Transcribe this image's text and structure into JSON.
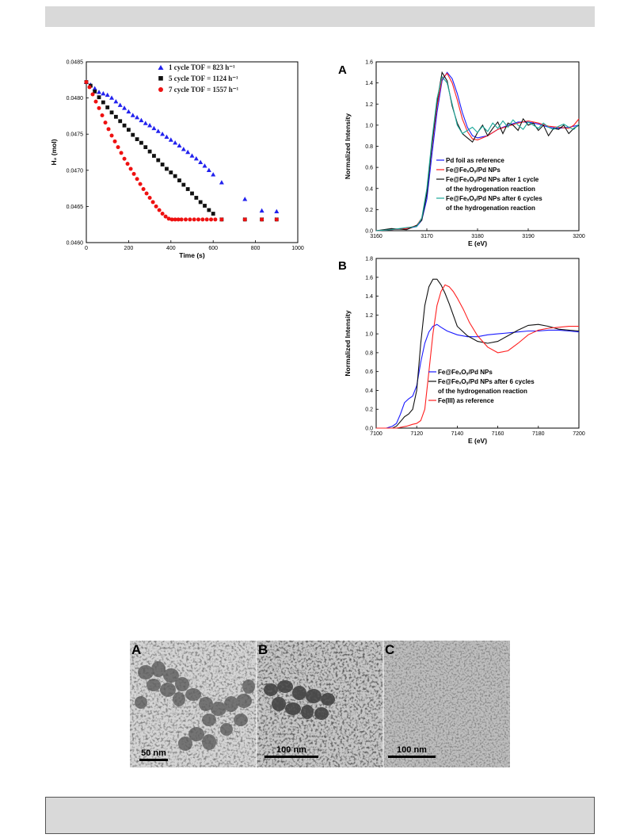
{
  "header": {
    "text": ""
  },
  "footer": {
    "text": ""
  },
  "chart_data": [
    {
      "type": "scatter",
      "xlabel": "Time (s)",
      "ylabel": "H₂ (mol)",
      "xlim": [
        0,
        1000
      ],
      "ylim": [
        0.046,
        0.0485
      ],
      "x_ticks": [
        "0",
        "200",
        "400",
        "600",
        "800",
        "1000"
      ],
      "y_ticks": [
        "0.0460",
        "0.0465",
        "0.0470",
        "0.0475",
        "0.0480",
        "0.0485"
      ],
      "legend_position": "top-right",
      "series": [
        {
          "name": "1 cycle  TOF = 823 h⁻¹",
          "color": "#2222ee",
          "marker": "triangle",
          "x": [
            0,
            20,
            40,
            60,
            80,
            100,
            120,
            140,
            160,
            180,
            200,
            220,
            240,
            260,
            280,
            300,
            320,
            340,
            360,
            380,
            400,
            420,
            440,
            460,
            480,
            500,
            520,
            540,
            560,
            580,
            600,
            640,
            750,
            830,
            900
          ],
          "y": [
            0.04822,
            0.04818,
            0.04813,
            0.04808,
            0.04806,
            0.04804,
            0.048,
            0.04795,
            0.0479,
            0.04786,
            0.04781,
            0.04776,
            0.04773,
            0.04769,
            0.04765,
            0.04762,
            0.04758,
            0.04754,
            0.0475,
            0.04746,
            0.04742,
            0.04738,
            0.04734,
            0.04729,
            0.04725,
            0.0472,
            0.04716,
            0.04711,
            0.04706,
            0.047,
            0.04694,
            0.04683,
            0.0466,
            0.04644,
            0.04643
          ]
        },
        {
          "name": "5 cycle  TOF = 1124 h⁻¹",
          "color": "#111111",
          "marker": "square",
          "x": [
            0,
            20,
            40,
            60,
            80,
            100,
            120,
            140,
            160,
            180,
            200,
            220,
            240,
            260,
            280,
            300,
            320,
            340,
            360,
            380,
            400,
            420,
            440,
            460,
            480,
            500,
            520,
            540,
            560,
            580,
            600,
            640,
            750,
            830,
            900
          ],
          "y": [
            0.04822,
            0.04817,
            0.04809,
            0.04801,
            0.04794,
            0.04787,
            0.0478,
            0.04774,
            0.04768,
            0.04762,
            0.04756,
            0.04749,
            0.04743,
            0.04738,
            0.04732,
            0.04726,
            0.0472,
            0.04714,
            0.04708,
            0.04702,
            0.04697,
            0.04692,
            0.04686,
            0.0468,
            0.04674,
            0.04668,
            0.04662,
            0.04656,
            0.04651,
            0.04645,
            0.0464,
            0.04632,
            0.04632,
            0.04632,
            0.04632
          ]
        },
        {
          "name": "7 cycle  TOF = 1557 h⁻¹",
          "color": "#ee1111",
          "marker": "circle",
          "x": [
            0,
            15,
            30,
            45,
            60,
            75,
            90,
            105,
            120,
            135,
            150,
            165,
            180,
            195,
            210,
            225,
            240,
            255,
            270,
            285,
            300,
            315,
            330,
            345,
            360,
            375,
            390,
            405,
            420,
            435,
            450,
            470,
            490,
            510,
            530,
            550,
            570,
            590,
            610,
            640,
            750,
            830,
            900
          ],
          "y": [
            0.04822,
            0.04815,
            0.04805,
            0.04795,
            0.04786,
            0.04776,
            0.04766,
            0.04757,
            0.04748,
            0.0474,
            0.04732,
            0.04724,
            0.04716,
            0.04709,
            0.04702,
            0.04695,
            0.04688,
            0.04681,
            0.04674,
            0.04668,
            0.04662,
            0.04656,
            0.0465,
            0.04645,
            0.0464,
            0.04636,
            0.04633,
            0.04632,
            0.04632,
            0.04632,
            0.04632,
            0.04632,
            0.04632,
            0.04632,
            0.04632,
            0.04632,
            0.04632,
            0.04632,
            0.04632,
            0.04632,
            0.04632,
            0.04632,
            0.04632
          ]
        }
      ]
    },
    {
      "type": "line",
      "panel_label": "A",
      "xlabel": "E (eV)",
      "ylabel": "Normalized Intensity",
      "xlim": [
        3160,
        3200
      ],
      "ylim": [
        0.0,
        1.6
      ],
      "x_ticks": [
        "3160",
        "3170",
        "3180",
        "3190",
        "3200"
      ],
      "y_ticks": [
        "0.0",
        "0.2",
        "0.4",
        "0.6",
        "0.8",
        "1.0",
        "1.2",
        "1.4",
        "1.6"
      ],
      "legend_position": "bottom-right",
      "series": [
        {
          "name": "Pd foil as reference",
          "color": "#1a1aff"
        },
        {
          "name": "Fe@FeₓOᵧ/Pd NPs",
          "color": "#ff2020"
        },
        {
          "name": "Fe@FeₓOᵧ/Pd NPs after 1 cycle",
          "name_line2": "of the hydrogenation reaction",
          "color": "#111111"
        },
        {
          "name": "Fe@FeₓOᵧ/Pd NPs after 6 cycles",
          "name_line2": "of the hydrogenation reaction",
          "color": "#1aa89a"
        }
      ],
      "curves": [
        {
          "color": "#1a1aff",
          "x": [
            3160,
            3163,
            3166,
            3168,
            3169,
            3170,
            3171,
            3172,
            3173,
            3174,
            3175,
            3176,
            3177,
            3178,
            3179,
            3180,
            3182,
            3184,
            3186,
            3188,
            3190,
            3192,
            3194,
            3196,
            3198,
            3200
          ],
          "y": [
            0.0,
            0.01,
            0.02,
            0.04,
            0.1,
            0.3,
            0.72,
            1.12,
            1.42,
            1.5,
            1.44,
            1.3,
            1.12,
            0.98,
            0.9,
            0.88,
            0.9,
            0.96,
            1.0,
            1.03,
            1.03,
            1.01,
            0.98,
            0.97,
            0.98,
            1.0
          ]
        },
        {
          "color": "#ff2020",
          "x": [
            3160,
            3163,
            3166,
            3168,
            3169,
            3170,
            3171,
            3172,
            3173,
            3174,
            3175,
            3176,
            3177,
            3178,
            3179,
            3180,
            3182,
            3184,
            3186,
            3188,
            3190,
            3192,
            3194,
            3196,
            3198,
            3199,
            3200
          ],
          "y": [
            0.0,
            0.01,
            0.02,
            0.05,
            0.12,
            0.36,
            0.8,
            1.18,
            1.44,
            1.49,
            1.4,
            1.24,
            1.06,
            0.94,
            0.87,
            0.86,
            0.9,
            0.96,
            0.99,
            1.02,
            1.04,
            1.02,
            0.99,
            0.98,
            0.97,
            1.0,
            1.06
          ]
        },
        {
          "color": "#111111",
          "x": [
            3160,
            3163,
            3166,
            3168,
            3169,
            3170,
            3171,
            3172,
            3173,
            3174,
            3175,
            3176,
            3177,
            3178,
            3179,
            3180,
            3181,
            3182,
            3183,
            3184,
            3185,
            3186,
            3187,
            3188,
            3189,
            3190,
            3191,
            3192,
            3193,
            3194,
            3195,
            3196,
            3197,
            3198,
            3199,
            3200
          ],
          "y": [
            0.0,
            0.02,
            0.01,
            0.05,
            0.1,
            0.35,
            0.82,
            1.22,
            1.5,
            1.42,
            1.18,
            1.02,
            0.92,
            0.88,
            0.84,
            0.93,
            1.0,
            0.9,
            0.97,
            1.03,
            0.92,
            1.02,
            1.0,
            0.95,
            1.06,
            1.0,
            1.02,
            0.95,
            1.0,
            0.9,
            0.97,
            0.96,
            1.0,
            0.92,
            0.97,
            1.0
          ]
        },
        {
          "color": "#1aa89a",
          "x": [
            3160,
            3163,
            3166,
            3168,
            3169,
            3170,
            3171,
            3172,
            3173,
            3174,
            3175,
            3176,
            3177,
            3178,
            3179,
            3180,
            3181,
            3182,
            3183,
            3184,
            3185,
            3186,
            3187,
            3188,
            3189,
            3190,
            3191,
            3192,
            3193,
            3194,
            3195,
            3196,
            3197,
            3198,
            3199,
            3200
          ],
          "y": [
            0.0,
            0.01,
            0.03,
            0.04,
            0.12,
            0.4,
            0.86,
            1.25,
            1.46,
            1.4,
            1.2,
            1.0,
            0.92,
            0.95,
            0.98,
            0.93,
            0.99,
            0.94,
            1.02,
            0.97,
            1.04,
            0.98,
            1.05,
            1.0,
            0.96,
            1.03,
            1.0,
            0.97,
            1.02,
            0.98,
            0.96,
            0.99,
            1.01,
            0.98,
            0.96,
            1.01
          ]
        }
      ]
    },
    {
      "type": "line",
      "panel_label": "B",
      "xlabel": "E (eV)",
      "ylabel": "Normalized Intensity",
      "xlim": [
        7100,
        7200
      ],
      "ylim": [
        0.0,
        1.8
      ],
      "x_ticks": [
        "7100",
        "7120",
        "7140",
        "7160",
        "7180",
        "7200"
      ],
      "y_ticks": [
        "0.0",
        "0.2",
        "0.4",
        "0.6",
        "0.8",
        "1.0",
        "1.2",
        "1.4",
        "1.6",
        "1.8"
      ],
      "legend_position": "bottom-right",
      "series": [
        {
          "name": "Fe@FeₓOᵧ/Pd NPs",
          "color": "#1a1aff"
        },
        {
          "name": "Fe@FeₓOᵧ/Pd NPs after 6 cycles",
          "name_line2": "of the hydrogenation reaction",
          "color": "#111111"
        },
        {
          "name": "Fe(III) as reference",
          "color": "#ff2020"
        }
      ],
      "curves": [
        {
          "color": "#1a1aff",
          "x": [
            7100,
            7105,
            7108,
            7110,
            7112,
            7114,
            7116,
            7118,
            7120,
            7122,
            7124,
            7126,
            7128,
            7130,
            7132,
            7135,
            7140,
            7145,
            7150,
            7155,
            7160,
            7165,
            7170,
            7175,
            7180,
            7185,
            7190,
            7195,
            7200
          ],
          "y": [
            0.0,
            0.0,
            0.02,
            0.05,
            0.15,
            0.27,
            0.31,
            0.34,
            0.45,
            0.7,
            0.9,
            1.02,
            1.08,
            1.1,
            1.07,
            1.03,
            0.99,
            0.97,
            0.97,
            0.99,
            1.0,
            1.01,
            1.02,
            1.03,
            1.03,
            1.04,
            1.04,
            1.03,
            1.02
          ]
        },
        {
          "color": "#111111",
          "x": [
            7100,
            7105,
            7108,
            7110,
            7112,
            7114,
            7116,
            7118,
            7120,
            7122,
            7124,
            7126,
            7128,
            7130,
            7132,
            7134,
            7136,
            7138,
            7140,
            7145,
            7150,
            7155,
            7160,
            7165,
            7170,
            7175,
            7180,
            7185,
            7190,
            7195,
            7200
          ],
          "y": [
            0.0,
            0.0,
            0.0,
            0.02,
            0.07,
            0.12,
            0.15,
            0.2,
            0.4,
            0.9,
            1.3,
            1.5,
            1.58,
            1.58,
            1.52,
            1.43,
            1.32,
            1.2,
            1.08,
            0.98,
            0.92,
            0.9,
            0.92,
            0.98,
            1.04,
            1.09,
            1.1,
            1.08,
            1.05,
            1.04,
            1.03
          ]
        },
        {
          "color": "#ff2020",
          "x": [
            7100,
            7110,
            7115,
            7118,
            7120,
            7122,
            7124,
            7126,
            7128,
            7130,
            7132,
            7134,
            7136,
            7138,
            7140,
            7143,
            7146,
            7150,
            7155,
            7160,
            7165,
            7170,
            7175,
            7180,
            7185,
            7190,
            7195,
            7200
          ],
          "y": [
            0.0,
            0.0,
            0.02,
            0.04,
            0.05,
            0.08,
            0.2,
            0.6,
            1.0,
            1.3,
            1.45,
            1.52,
            1.5,
            1.45,
            1.38,
            1.26,
            1.12,
            0.98,
            0.86,
            0.8,
            0.82,
            0.9,
            0.99,
            1.04,
            1.06,
            1.07,
            1.08,
            1.08
          ]
        }
      ]
    }
  ],
  "tem": {
    "panels": [
      {
        "label": "A",
        "scale": "50 nm"
      },
      {
        "label": "B",
        "scale": "100 nm"
      },
      {
        "label": "C",
        "scale": "100 nm"
      }
    ]
  }
}
